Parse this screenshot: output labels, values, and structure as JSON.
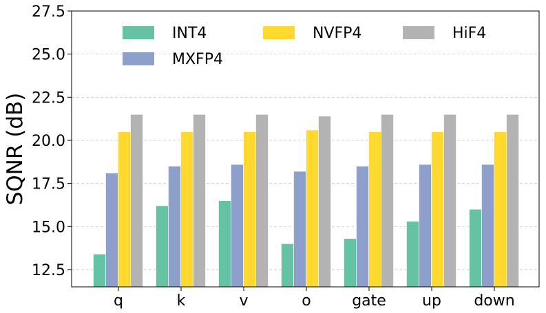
{
  "chart_data": {
    "type": "bar",
    "title": "",
    "xlabel": "",
    "ylabel": "SQNR (dB)",
    "ylim": [
      11.5,
      27.5
    ],
    "yticks": [
      12.5,
      15.0,
      17.5,
      20.0,
      22.5,
      25.0,
      27.5
    ],
    "ytick_labels": [
      "12.5",
      "15.0",
      "17.5",
      "20.0",
      "22.5",
      "25.0",
      "27.5"
    ],
    "grid": "horizontal dashed",
    "legend_position": "top",
    "categories": [
      "q",
      "k",
      "v",
      "o",
      "gate",
      "up",
      "down"
    ],
    "series": [
      {
        "name": "INT4",
        "color": "#66c2a5",
        "values": [
          13.4,
          16.2,
          16.5,
          14.0,
          14.3,
          15.3,
          16.0
        ]
      },
      {
        "name": "MXFP4",
        "color": "#8da0cb",
        "values": [
          18.1,
          18.5,
          18.6,
          18.2,
          18.5,
          18.6,
          18.6
        ]
      },
      {
        "name": "NVFP4",
        "color": "#ffd92f",
        "values": [
          20.5,
          20.5,
          20.5,
          20.6,
          20.5,
          20.5,
          20.5
        ]
      },
      {
        "name": "HiF4",
        "color": "#b3b3b3",
        "values": [
          21.5,
          21.5,
          21.5,
          21.4,
          21.5,
          21.5,
          21.5
        ]
      }
    ]
  }
}
